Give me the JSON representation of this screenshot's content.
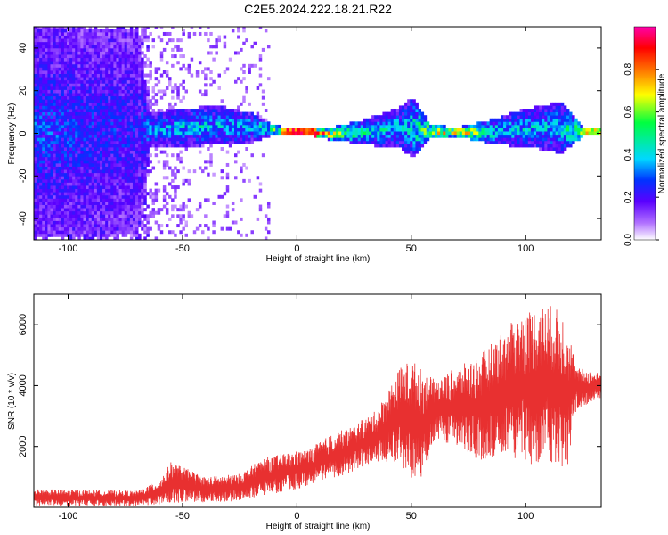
{
  "title": "C2E5.2024.222.18.21.R22",
  "chart_data": [
    {
      "type": "heatmap",
      "xlabel": "Height of straight line (km)",
      "ylabel": "Frequency (Hz)",
      "xlim": [
        -115,
        133
      ],
      "ylim": [
        -50,
        50
      ],
      "xticks": [
        -100,
        -50,
        0,
        50,
        100
      ],
      "yticks": [
        -40,
        -20,
        0,
        20,
        40
      ],
      "colorbar": {
        "label": "Normalized spectral amplitude",
        "range": [
          0,
          1
        ],
        "ticks": [
          0.0,
          0.2,
          0.4,
          0.6,
          0.8
        ]
      },
      "profile": [
        {
          "x": -115,
          "center": 0,
          "halfwidth": 50,
          "intensity": 0.3
        },
        {
          "x": -70,
          "center": 0,
          "halfwidth": 48,
          "intensity": 0.25
        },
        {
          "x": -65,
          "center": 1,
          "halfwidth": 8,
          "intensity": 0.35
        },
        {
          "x": -50,
          "center": 2,
          "halfwidth": 9,
          "intensity": 0.4
        },
        {
          "x": -35,
          "center": 3,
          "halfwidth": 9,
          "intensity": 0.4
        },
        {
          "x": -20,
          "center": 2,
          "halfwidth": 7,
          "intensity": 0.4
        },
        {
          "x": -12,
          "center": 1,
          "halfwidth": 3,
          "intensity": 0.5
        },
        {
          "x": -5,
          "center": 0,
          "halfwidth": 1.5,
          "intensity": 0.85
        },
        {
          "x": 5,
          "center": 0,
          "halfwidth": 1.5,
          "intensity": 0.9
        },
        {
          "x": 15,
          "center": -1,
          "halfwidth": 3,
          "intensity": 0.7
        },
        {
          "x": 30,
          "center": 0,
          "halfwidth": 6,
          "intensity": 0.45
        },
        {
          "x": 45,
          "center": 2,
          "halfwidth": 10,
          "intensity": 0.4
        },
        {
          "x": 50,
          "center": 2,
          "halfwidth": 14,
          "intensity": 0.45
        },
        {
          "x": 58,
          "center": 0,
          "halfwidth": 3,
          "intensity": 0.7
        },
        {
          "x": 70,
          "center": 0,
          "halfwidth": 2,
          "intensity": 0.85
        },
        {
          "x": 85,
          "center": 0,
          "halfwidth": 6,
          "intensity": 0.45
        },
        {
          "x": 100,
          "center": 2,
          "halfwidth": 9,
          "intensity": 0.4
        },
        {
          "x": 115,
          "center": 2,
          "halfwidth": 12,
          "intensity": 0.4
        },
        {
          "x": 125,
          "center": 0,
          "halfwidth": 2,
          "intensity": 0.7
        },
        {
          "x": 133,
          "center": 0,
          "halfwidth": 1.5,
          "intensity": 0.6
        }
      ]
    },
    {
      "type": "line",
      "xlabel": "Height of straight line (km)",
      "ylabel": "SNR (10 * v/v)",
      "xlim": [
        -115,
        133
      ],
      "ylim": [
        0,
        7000
      ],
      "xticks": [
        -100,
        -50,
        0,
        50,
        100
      ],
      "yticks": [
        2000,
        4000,
        6000
      ],
      "color": "#e83030",
      "envelope": [
        {
          "x": -115,
          "low": 50,
          "high": 600
        },
        {
          "x": -70,
          "low": 50,
          "high": 550
        },
        {
          "x": -60,
          "low": 100,
          "high": 900
        },
        {
          "x": -55,
          "low": 150,
          "high": 1500
        },
        {
          "x": -40,
          "low": 150,
          "high": 1000
        },
        {
          "x": -25,
          "low": 200,
          "high": 1100
        },
        {
          "x": -15,
          "low": 400,
          "high": 1600
        },
        {
          "x": -5,
          "low": 500,
          "high": 1800
        },
        {
          "x": 5,
          "low": 700,
          "high": 1900
        },
        {
          "x": 15,
          "low": 900,
          "high": 2400
        },
        {
          "x": 25,
          "low": 1200,
          "high": 2700
        },
        {
          "x": 35,
          "low": 1500,
          "high": 3200
        },
        {
          "x": 45,
          "low": 1500,
          "high": 4600
        },
        {
          "x": 50,
          "low": 800,
          "high": 4900
        },
        {
          "x": 55,
          "low": 1000,
          "high": 4500
        },
        {
          "x": 60,
          "low": 2200,
          "high": 4200
        },
        {
          "x": 70,
          "low": 2000,
          "high": 4600
        },
        {
          "x": 80,
          "low": 1500,
          "high": 5000
        },
        {
          "x": 90,
          "low": 1800,
          "high": 5800
        },
        {
          "x": 100,
          "low": 1400,
          "high": 6500
        },
        {
          "x": 110,
          "low": 1500,
          "high": 6700
        },
        {
          "x": 118,
          "low": 1200,
          "high": 6300
        },
        {
          "x": 122,
          "low": 3200,
          "high": 4600
        },
        {
          "x": 133,
          "low": 3600,
          "high": 4400
        }
      ]
    }
  ]
}
